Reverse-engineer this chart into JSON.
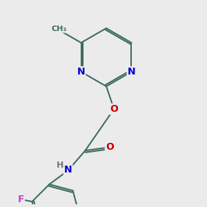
{
  "background_color": "#ebebeb",
  "bond_color": "#3d6b5e",
  "bond_width": 1.5,
  "atom_colors": {
    "N": "#0000cc",
    "O": "#cc0000",
    "F": "#cc44cc",
    "H": "#777777",
    "C": "#3d6b5e"
  },
  "font_size": 10,
  "font_size_small": 9
}
